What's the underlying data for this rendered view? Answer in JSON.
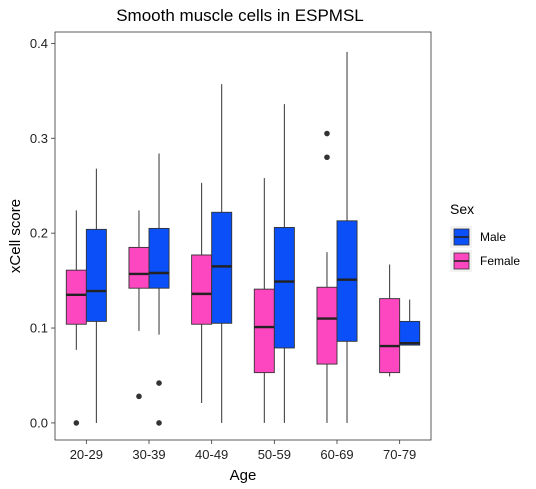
{
  "chart_data": {
    "type": "boxplot",
    "title": "Smooth muscle cells in ESPMSL",
    "xlabel": "Age",
    "ylabel": "xCell score",
    "ylim": [
      -0.018,
      0.412
    ],
    "yticks": [
      0.0,
      0.1,
      0.2,
      0.3,
      0.4
    ],
    "ytick_labels": [
      "0.0",
      "0.1",
      "0.2",
      "0.3",
      "0.4"
    ],
    "categories": [
      "20-29",
      "30-39",
      "40-49",
      "50-59",
      "60-69",
      "70-79"
    ],
    "grid": false,
    "legend": {
      "title": "Sex",
      "position": "right",
      "entries": [
        {
          "label": "Male",
          "color": "#0a4ff7"
        },
        {
          "label": "Female",
          "color": "#fd47c0"
        }
      ]
    },
    "series": [
      {
        "name": "Female",
        "color": "#fd47c0",
        "boxes": [
          {
            "category": "20-29",
            "whisker_low": 0.077,
            "q1": 0.104,
            "median": 0.135,
            "q3": 0.161,
            "whisker_high": 0.224,
            "outliers": [
              0.0
            ]
          },
          {
            "category": "30-39",
            "whisker_low": 0.097,
            "q1": 0.142,
            "median": 0.157,
            "q3": 0.185,
            "whisker_high": 0.224,
            "outliers": [
              0.028
            ]
          },
          {
            "category": "40-49",
            "whisker_low": 0.021,
            "q1": 0.104,
            "median": 0.136,
            "q3": 0.177,
            "whisker_high": 0.253,
            "outliers": []
          },
          {
            "category": "50-59",
            "whisker_low": 0.0,
            "q1": 0.053,
            "median": 0.101,
            "q3": 0.141,
            "whisker_high": 0.258,
            "outliers": []
          },
          {
            "category": "60-69",
            "whisker_low": 0.0,
            "q1": 0.062,
            "median": 0.11,
            "q3": 0.143,
            "whisker_high": 0.18,
            "outliers": [
              0.305,
              0.28
            ]
          },
          {
            "category": "70-79",
            "whisker_low": 0.049,
            "q1": 0.053,
            "median": 0.081,
            "q3": 0.131,
            "whisker_high": 0.167,
            "outliers": []
          }
        ]
      },
      {
        "name": "Male",
        "color": "#0a4ff7",
        "boxes": [
          {
            "category": "20-29",
            "whisker_low": 0.0,
            "q1": 0.107,
            "median": 0.139,
            "q3": 0.204,
            "whisker_high": 0.268,
            "outliers": []
          },
          {
            "category": "30-39",
            "whisker_low": 0.093,
            "q1": 0.142,
            "median": 0.158,
            "q3": 0.205,
            "whisker_high": 0.284,
            "outliers": [
              0.042,
              0.0
            ]
          },
          {
            "category": "40-49",
            "whisker_low": 0.0,
            "q1": 0.105,
            "median": 0.165,
            "q3": 0.222,
            "whisker_high": 0.357,
            "outliers": []
          },
          {
            "category": "50-59",
            "whisker_low": 0.0,
            "q1": 0.079,
            "median": 0.149,
            "q3": 0.206,
            "whisker_high": 0.336,
            "outliers": []
          },
          {
            "category": "60-69",
            "whisker_low": 0.0,
            "q1": 0.086,
            "median": 0.151,
            "q3": 0.213,
            "whisker_high": 0.391,
            "outliers": []
          },
          {
            "category": "70-79",
            "whisker_low": 0.082,
            "q1": 0.082,
            "median": 0.084,
            "q3": 0.107,
            "whisker_high": 0.13,
            "outliers": []
          }
        ]
      }
    ]
  }
}
